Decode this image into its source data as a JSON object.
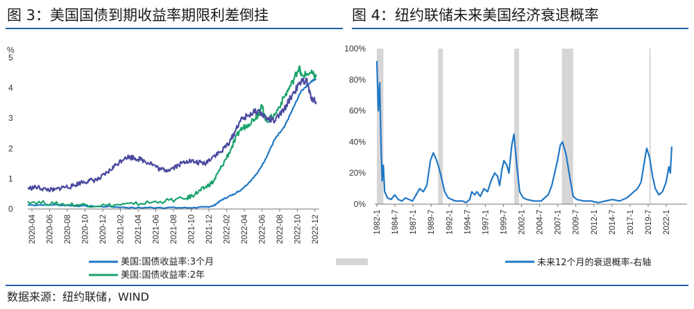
{
  "header": {
    "fig3_title": "图 3：美国国债到期收益率期限利差倒挂",
    "fig4_title": "图 4：纽约联储未来美国经济衰退概率"
  },
  "footer": {
    "source": "数据来源：纽约联储，WIND"
  },
  "colors": {
    "blue": "#1f77c4",
    "green": "#1aa36b",
    "purple": "#4b4aa0",
    "gray": "#d6d6d6",
    "rule": "#1f5fa8"
  },
  "chart_data": [
    {
      "type": "line",
      "ylabel": "%",
      "ylim": [
        0,
        5
      ],
      "yticks": [
        "0",
        "1",
        "2",
        "3",
        "4",
        "5"
      ],
      "x_ticks": [
        "2020-04",
        "2020-06",
        "2020-08",
        "2020-10",
        "2020-12",
        "2021-02",
        "2021-04",
        "2021-06",
        "2021-08",
        "2021-10",
        "2021-12",
        "2022-02",
        "2022-04",
        "2022-06",
        "2022-08",
        "2022-10",
        "2022-12"
      ],
      "x_range": [
        2020.25,
        2023.0
      ],
      "legend": "bottom",
      "series": [
        {
          "name": "美国:国债收益率:3个月",
          "color": "#1f77c4",
          "x": [
            2020.25,
            2020.5,
            2020.75,
            2021.0,
            2021.25,
            2021.5,
            2021.75,
            2021.92,
            2022.0,
            2022.08,
            2022.17,
            2022.25,
            2022.33,
            2022.42,
            2022.5,
            2022.58,
            2022.67,
            2022.75,
            2022.83,
            2022.92,
            2022.97
          ],
          "values": [
            0.13,
            0.14,
            0.1,
            0.08,
            0.04,
            0.05,
            0.04,
            0.06,
            0.1,
            0.3,
            0.45,
            0.6,
            0.85,
            1.2,
            1.7,
            2.3,
            2.7,
            3.3,
            3.9,
            4.2,
            4.3
          ]
        },
        {
          "name": "美国:国债收益率:2年",
          "color": "#1aa36b",
          "x": [
            2020.25,
            2020.5,
            2020.75,
            2021.0,
            2021.25,
            2021.5,
            2021.75,
            2021.83,
            2021.92,
            2022.0,
            2022.08,
            2022.17,
            2022.25,
            2022.33,
            2022.42,
            2022.46,
            2022.5,
            2022.58,
            2022.67,
            2022.75,
            2022.81,
            2022.83,
            2022.92,
            2022.97
          ],
          "values": [
            0.25,
            0.17,
            0.14,
            0.12,
            0.16,
            0.25,
            0.35,
            0.5,
            0.7,
            0.9,
            1.4,
            2.0,
            2.6,
            2.8,
            3.1,
            3.4,
            2.9,
            3.1,
            3.7,
            4.2,
            4.7,
            4.4,
            4.5,
            4.35
          ]
        },
        {
          "name": "",
          "color": "#4b4aa0",
          "x": [
            2020.25,
            2020.33,
            2020.42,
            2020.5,
            2020.58,
            2020.67,
            2020.75,
            2020.83,
            2020.92,
            2021.0,
            2021.08,
            2021.17,
            2021.25,
            2021.33,
            2021.42,
            2021.5,
            2021.58,
            2021.67,
            2021.75,
            2021.83,
            2021.92,
            2022.0,
            2022.08,
            2022.17,
            2022.25,
            2022.33,
            2022.42,
            2022.5,
            2022.58,
            2022.67,
            2022.75,
            2022.83,
            2022.88,
            2022.92,
            2022.97
          ],
          "values": [
            0.68,
            0.72,
            0.65,
            0.62,
            0.72,
            0.75,
            0.88,
            0.93,
            0.98,
            1.2,
            1.45,
            1.72,
            1.7,
            1.62,
            1.5,
            1.3,
            1.3,
            1.45,
            1.6,
            1.55,
            1.5,
            1.75,
            1.9,
            2.3,
            2.9,
            3.1,
            3.25,
            3.0,
            2.9,
            3.3,
            3.8,
            4.2,
            4.25,
            3.7,
            3.55
          ]
        }
      ]
    },
    {
      "type": "line",
      "ylim": [
        0,
        100
      ],
      "yticks": [
        "0%",
        "20%",
        "40%",
        "60%",
        "80%",
        "100%"
      ],
      "x_ticks": [
        "1982-1",
        "1984-7",
        "1987-1",
        "1989-7",
        "1992-1",
        "1994-7",
        "1997-1",
        "1999-7",
        "2002-1",
        "2004-7",
        "2007-1",
        "2009-7",
        "2012-1",
        "2014-7",
        "2017-1",
        "2019-7",
        "2022-1"
      ],
      "x_range": [
        1982.0,
        2023.5
      ],
      "legend": "bottom",
      "recessions": [
        [
          1982.0,
          1982.92
        ],
        [
          1990.58,
          1991.25
        ],
        [
          2001.25,
          2001.92
        ],
        [
          2007.92,
          2009.5
        ],
        [
          2020.17,
          2020.33
        ]
      ],
      "series": [
        {
          "name": "未来12个月的衰退概率-右轴",
          "color": "#1f77c4",
          "x": [
            1982.0,
            1982.2,
            1982.4,
            1982.6,
            1982.75,
            1982.9,
            1983.1,
            1983.5,
            1984.0,
            1984.5,
            1985.0,
            1985.5,
            1986.0,
            1986.5,
            1987.0,
            1987.5,
            1988.0,
            1988.5,
            1989.0,
            1989.5,
            1989.9,
            1990.2,
            1990.6,
            1991.0,
            1991.5,
            1992.0,
            1992.5,
            1993.0,
            1994.0,
            1994.5,
            1995.0,
            1995.3,
            1995.7,
            1996.0,
            1996.5,
            1997.0,
            1997.5,
            1998.0,
            1998.5,
            1998.9,
            1999.2,
            1999.5,
            1999.8,
            2000.2,
            2000.5,
            2000.9,
            2001.2,
            2001.6,
            2002.0,
            2002.5,
            2003.0,
            2004.0,
            2005.0,
            2005.5,
            2006.0,
            2006.5,
            2007.0,
            2007.3,
            2007.7,
            2008.0,
            2008.5,
            2009.0,
            2009.5,
            2010.0,
            2011.0,
            2012.0,
            2013.0,
            2014.0,
            2015.0,
            2016.0,
            2017.0,
            2017.5,
            2018.0,
            2018.5,
            2019.0,
            2019.5,
            2019.8,
            2020.2,
            2020.6,
            2021.0,
            2021.5,
            2022.0,
            2022.5,
            2022.9,
            2023.1,
            2023.3
          ],
          "values": [
            92,
            60,
            78,
            35,
            15,
            25,
            8,
            4,
            3,
            6,
            3,
            2,
            4,
            3,
            2,
            6,
            10,
            8,
            12,
            28,
            33,
            30,
            25,
            18,
            8,
            4,
            3,
            2,
            2,
            1,
            3,
            8,
            6,
            8,
            5,
            10,
            8,
            15,
            20,
            18,
            12,
            22,
            28,
            25,
            20,
            38,
            45,
            25,
            8,
            4,
            3,
            2,
            2,
            4,
            6,
            12,
            22,
            28,
            38,
            40,
            32,
            18,
            5,
            3,
            2,
            2,
            1,
            2,
            3,
            2,
            4,
            6,
            8,
            10,
            14,
            28,
            36,
            30,
            18,
            10,
            6,
            8,
            14,
            24,
            20,
            37
          ]
        }
      ]
    }
  ]
}
